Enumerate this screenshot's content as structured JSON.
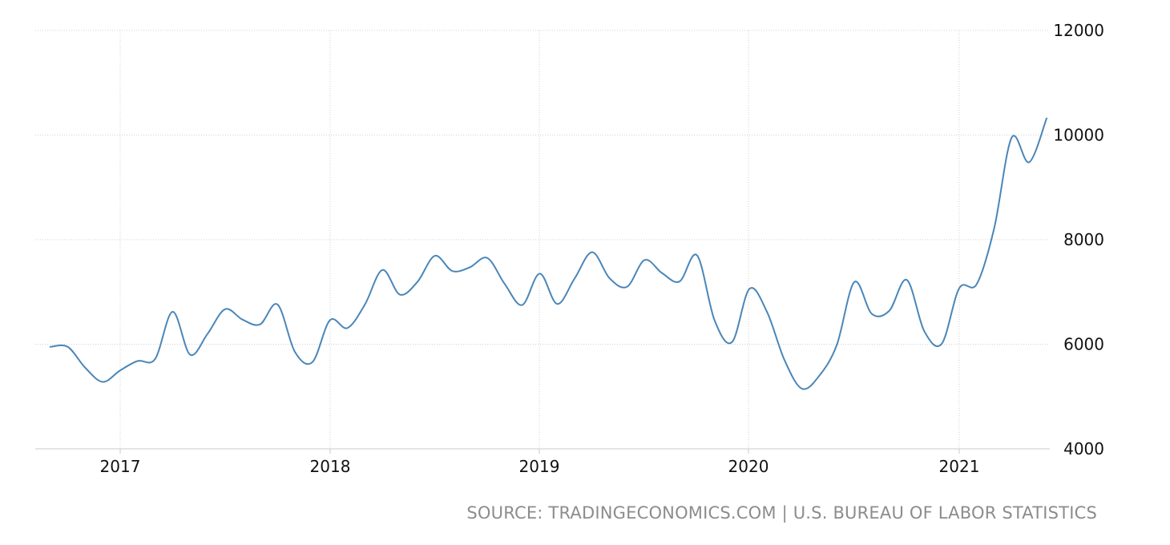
{
  "source": "SOURCE: TRADINGECONOMICS.COM | U.S. BUREAU OF LABOR STATISTICS",
  "colors": {
    "line": "#4a86b8",
    "grid": "#d0d0d0",
    "source_text": "#8c8c8c"
  },
  "chart_data": {
    "type": "line",
    "title": "",
    "xlabel": "",
    "ylabel": "",
    "ylim": [
      4000,
      12000
    ],
    "y_ticks": [
      4000,
      6000,
      8000,
      10000,
      12000
    ],
    "y_axis_side": "right",
    "x_ticks": [
      "2017",
      "2018",
      "2019",
      "2020",
      "2021"
    ],
    "grid": true,
    "legend": "none",
    "x": [
      "2016-09",
      "2016-10",
      "2016-11",
      "2016-12",
      "2017-01",
      "2017-02",
      "2017-03",
      "2017-04",
      "2017-05",
      "2017-06",
      "2017-07",
      "2017-08",
      "2017-09",
      "2017-10",
      "2017-11",
      "2017-12",
      "2018-01",
      "2018-02",
      "2018-03",
      "2018-04",
      "2018-05",
      "2018-06",
      "2018-07",
      "2018-08",
      "2018-09",
      "2018-10",
      "2018-11",
      "2018-12",
      "2019-01",
      "2019-02",
      "2019-03",
      "2019-04",
      "2019-05",
      "2019-06",
      "2019-07",
      "2019-08",
      "2019-09",
      "2019-10",
      "2019-11",
      "2019-12",
      "2020-01",
      "2020-02",
      "2020-03",
      "2020-04",
      "2020-05",
      "2020-06",
      "2020-07",
      "2020-08",
      "2020-09",
      "2020-10",
      "2020-11",
      "2020-12",
      "2021-01",
      "2021-02",
      "2021-03",
      "2021-04",
      "2021-05",
      "2021-06"
    ],
    "series": [
      {
        "values": [
          5950,
          5950,
          5550,
          5280,
          5500,
          5680,
          5720,
          6620,
          5800,
          6200,
          6670,
          6470,
          6380,
          6760,
          5850,
          5660,
          6460,
          6310,
          6760,
          7420,
          6950,
          7190,
          7690,
          7400,
          7470,
          7650,
          7150,
          6750,
          7350,
          6770,
          7260,
          7760,
          7260,
          7100,
          7610,
          7360,
          7200,
          7700,
          6460,
          6040,
          7060,
          6620,
          5700,
          5150,
          5400,
          5990,
          7190,
          6580,
          6640,
          7230,
          6250,
          6010,
          7070,
          7150,
          8220,
          9950,
          9480,
          10320
        ]
      }
    ]
  }
}
